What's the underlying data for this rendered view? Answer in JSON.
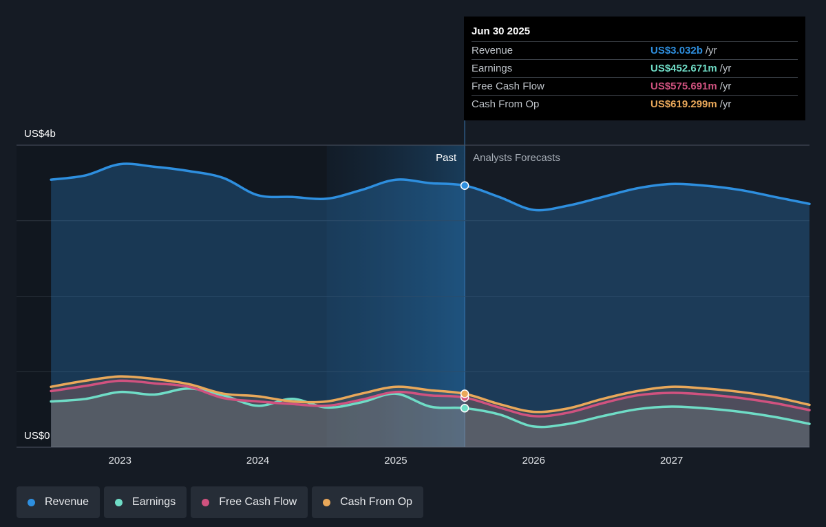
{
  "chart_data": {
    "type": "line",
    "x_unit": "year",
    "xlim": [
      2022.25,
      2028.0
    ],
    "ylim": [
      0,
      3.5
    ],
    "y_tick_labels": [
      {
        "value": 3.5,
        "label": "US$4b"
      },
      {
        "value": 0,
        "label": "US$0"
      }
    ],
    "x_ticks": [
      2023,
      2024,
      2025,
      2026,
      2027
    ],
    "x_tick_labels": [
      "2023",
      "2024",
      "2025",
      "2026",
      "2027"
    ],
    "past_label": "Past",
    "forecast_label": "Analysts Forecasts",
    "past_end": 2025.5,
    "highlight_start": 2024.5,
    "series": [
      {
        "name": "Revenue",
        "color": "#2e8fdf",
        "fill": true,
        "x": [
          2022.5,
          2022.75,
          2023.0,
          2023.25,
          2023.5,
          2023.75,
          2024.0,
          2024.25,
          2024.5,
          2024.75,
          2025.0,
          2025.25,
          2025.5,
          2025.75,
          2026.0,
          2026.25,
          2026.5,
          2026.75,
          2027.0,
          2027.25,
          2027.5,
          2027.75,
          2028.0
        ],
        "y": [
          3.1,
          3.15,
          3.28,
          3.25,
          3.2,
          3.12,
          2.92,
          2.9,
          2.88,
          2.98,
          3.1,
          3.06,
          3.032,
          2.9,
          2.75,
          2.8,
          2.9,
          3.0,
          3.05,
          3.03,
          2.98,
          2.9,
          2.82
        ]
      },
      {
        "name": "Earnings",
        "color": "#6fdcc6",
        "x": [
          2022.5,
          2022.75,
          2023.0,
          2023.25,
          2023.5,
          2023.75,
          2024.0,
          2024.25,
          2024.5,
          2024.75,
          2025.0,
          2025.25,
          2025.5,
          2025.75,
          2026.0,
          2026.25,
          2026.5,
          2026.75,
          2027.0,
          2027.25,
          2027.5,
          2027.75,
          2028.0
        ],
        "y": [
          0.53,
          0.56,
          0.64,
          0.61,
          0.68,
          0.6,
          0.48,
          0.56,
          0.46,
          0.52,
          0.62,
          0.47,
          0.452,
          0.38,
          0.24,
          0.27,
          0.36,
          0.44,
          0.47,
          0.45,
          0.41,
          0.35,
          0.27
        ]
      },
      {
        "name": "Free Cash Flow",
        "color": "#d0527f",
        "x": [
          2022.5,
          2022.75,
          2023.0,
          2023.25,
          2023.5,
          2023.75,
          2024.0,
          2024.25,
          2024.5,
          2024.75,
          2025.0,
          2025.25,
          2025.5,
          2025.75,
          2026.0,
          2026.25,
          2026.5,
          2026.75,
          2027.0,
          2027.25,
          2027.5,
          2027.75,
          2028.0
        ],
        "y": [
          0.65,
          0.71,
          0.77,
          0.74,
          0.7,
          0.57,
          0.53,
          0.5,
          0.48,
          0.55,
          0.64,
          0.6,
          0.576,
          0.46,
          0.36,
          0.4,
          0.51,
          0.6,
          0.63,
          0.61,
          0.57,
          0.51,
          0.43
        ]
      },
      {
        "name": "Cash From Op",
        "color": "#e9a85a",
        "x": [
          2022.5,
          2022.75,
          2023.0,
          2023.25,
          2023.5,
          2023.75,
          2024.0,
          2024.25,
          2024.5,
          2024.75,
          2025.0,
          2025.25,
          2025.5,
          2025.75,
          2026.0,
          2026.25,
          2026.5,
          2026.75,
          2027.0,
          2027.25,
          2027.5,
          2027.75,
          2028.0
        ],
        "y": [
          0.7,
          0.77,
          0.82,
          0.79,
          0.73,
          0.62,
          0.59,
          0.53,
          0.53,
          0.62,
          0.7,
          0.66,
          0.619,
          0.5,
          0.41,
          0.45,
          0.56,
          0.65,
          0.7,
          0.68,
          0.64,
          0.58,
          0.49
        ]
      }
    ],
    "marker_x": 2025.5
  },
  "tooltip": {
    "date": "Jun 30 2025",
    "rows": [
      {
        "name": "Revenue",
        "value": "US$3.032b",
        "unit": "/yr",
        "color": "#2e8fdf"
      },
      {
        "name": "Earnings",
        "value": "US$452.671m",
        "unit": "/yr",
        "color": "#6fdcc6"
      },
      {
        "name": "Free Cash Flow",
        "value": "US$575.691m",
        "unit": "/yr",
        "color": "#d0527f"
      },
      {
        "name": "Cash From Op",
        "value": "US$619.299m",
        "unit": "/yr",
        "color": "#e9a85a"
      }
    ]
  },
  "legend": [
    {
      "label": "Revenue",
      "color": "#2e8fdf"
    },
    {
      "label": "Earnings",
      "color": "#6fdcc6"
    },
    {
      "label": "Free Cash Flow",
      "color": "#d0527f"
    },
    {
      "label": "Cash From Op",
      "color": "#e9a85a"
    }
  ]
}
